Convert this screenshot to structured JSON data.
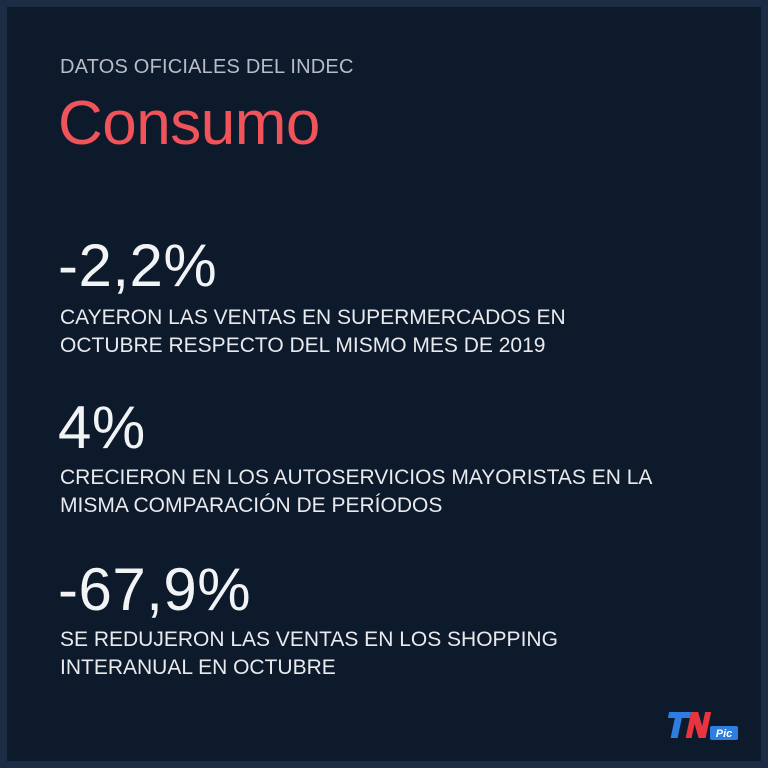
{
  "header": {
    "kicker": "DATOS OFICIALES DEL INDEC",
    "title": "Consumo"
  },
  "stats": [
    {
      "value": "-2,2%",
      "description_lines": [
        "CAYERON LAS VENTAS EN SUPERMERCADOS EN",
        "OCTUBRE RESPECTO DEL MISMO MES DE 2019"
      ]
    },
    {
      "value": "4%",
      "description_lines": [
        "CRECIERON EN LOS AUTOSERVICIOS MAYORISTAS EN LA",
        "MISMA COMPARACIÓN DE PERÍODOS"
      ]
    },
    {
      "value": "-67,9%",
      "description_lines": [
        "SE REDUJERON LAS VENTAS EN LOS SHOPPING",
        "INTERANUAL EN OCTUBRE"
      ]
    }
  ],
  "brand": {
    "logo_text": "TN",
    "logo_sub": "Pic",
    "colors": {
      "accent_red": "#f0545a",
      "logo_blue": "#2e7de0",
      "logo_red": "#e8343c"
    }
  }
}
